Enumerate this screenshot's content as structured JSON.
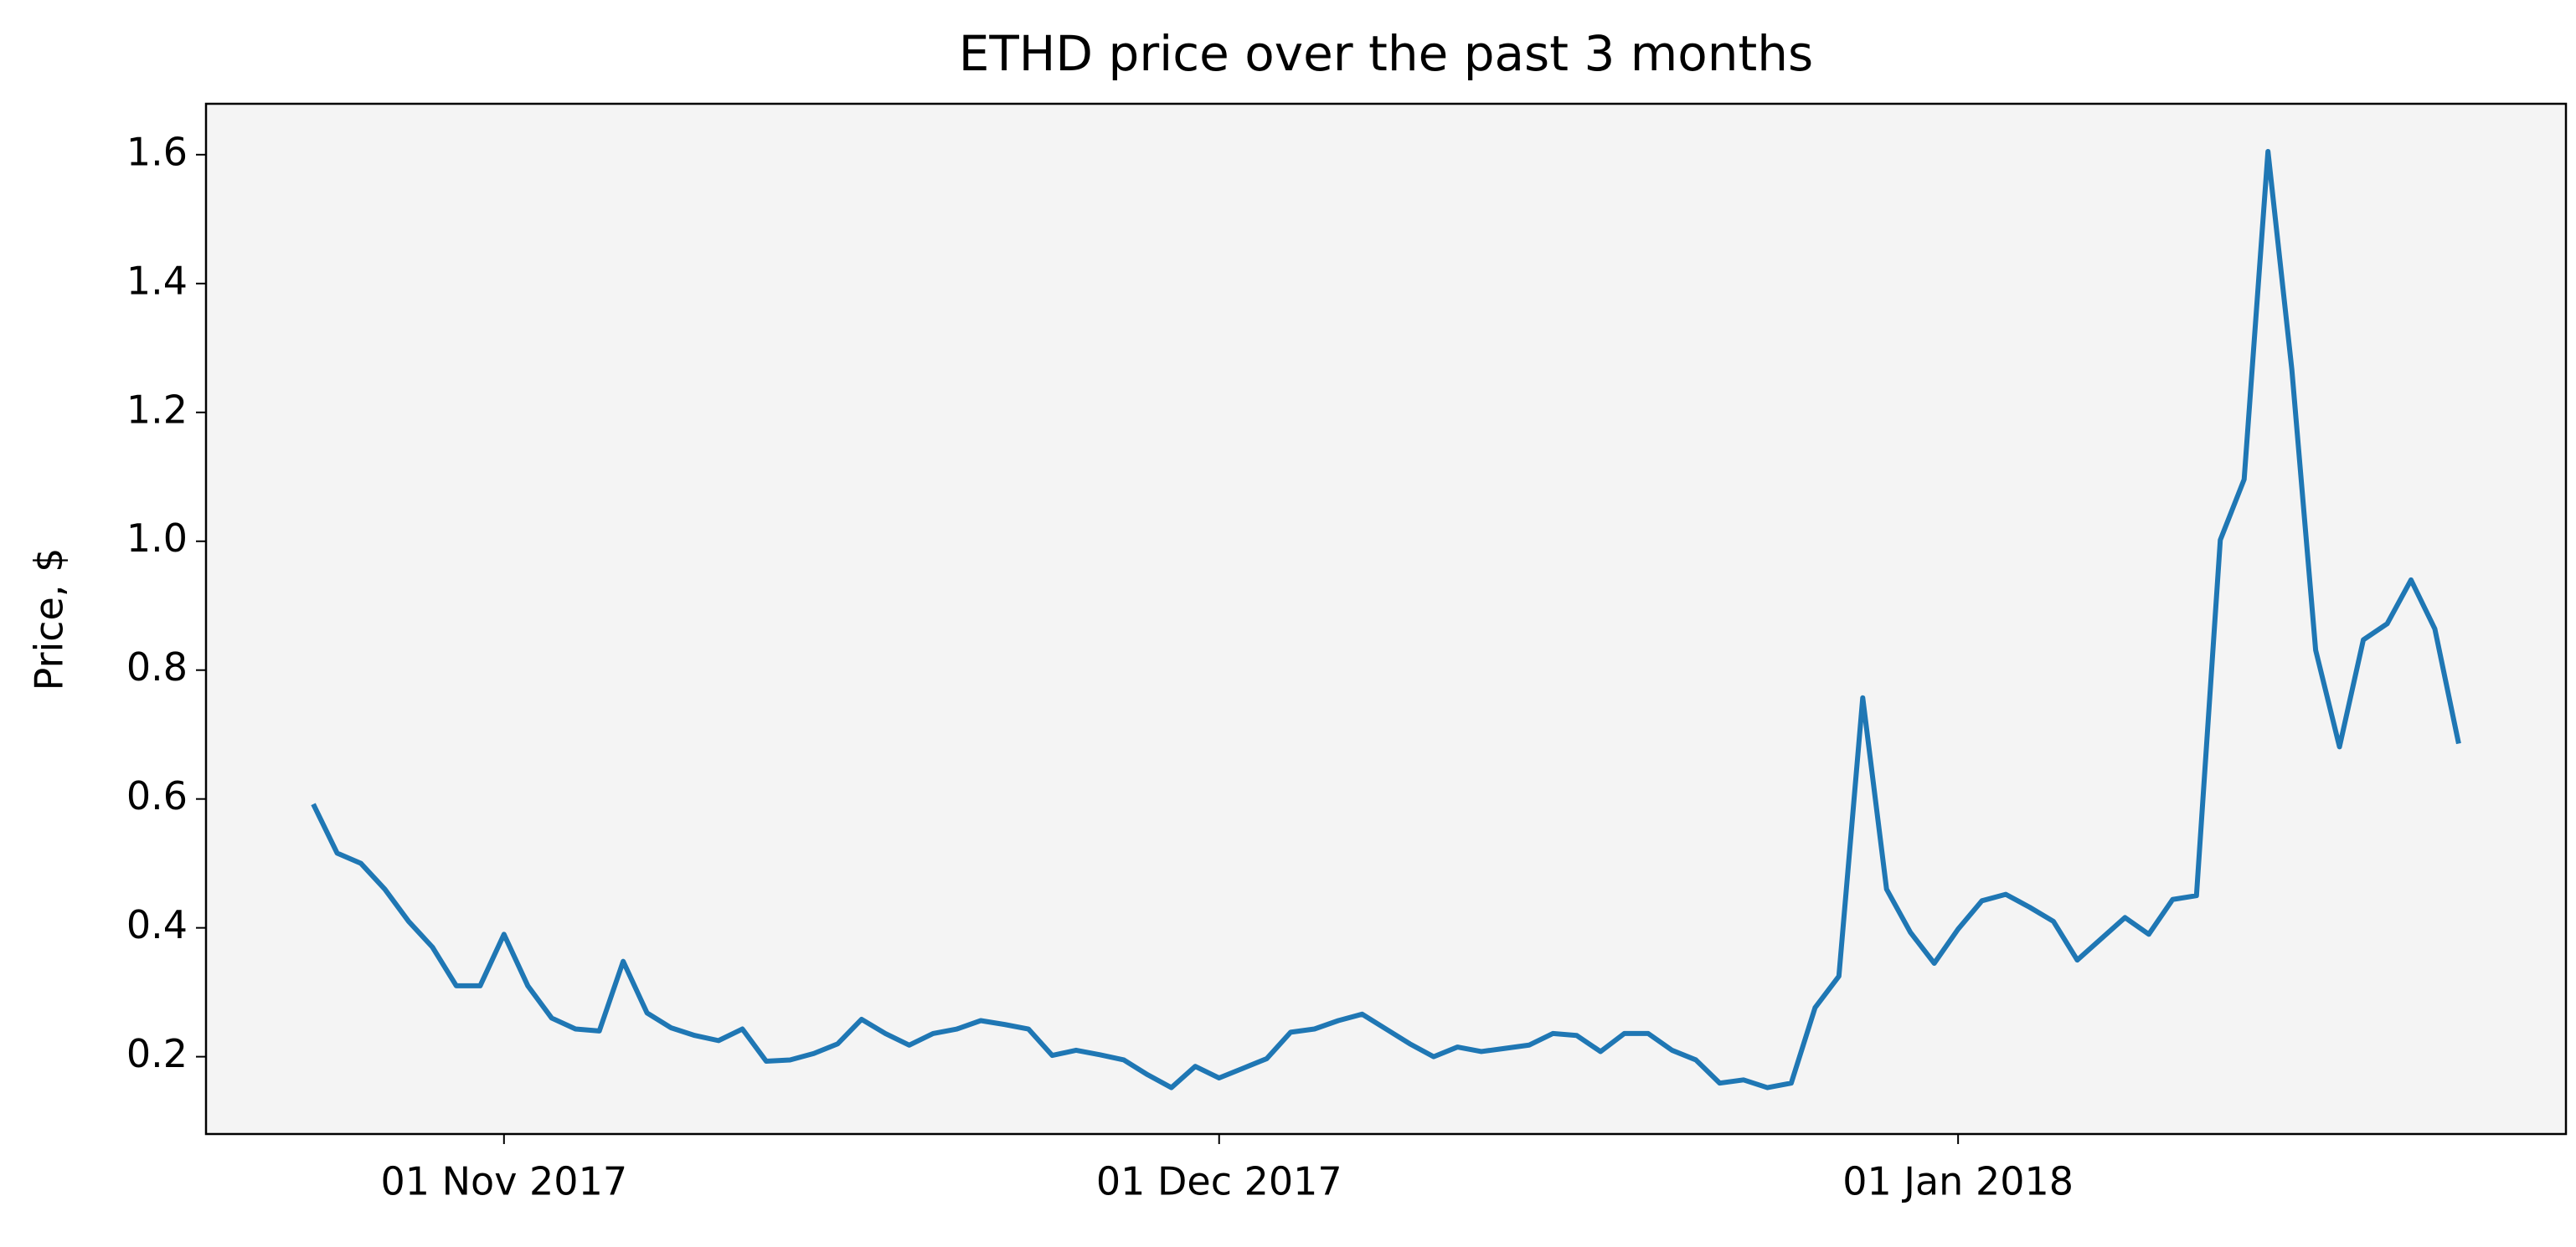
{
  "chart_data": {
    "type": "line",
    "title": "ETHD price over the past 3 months",
    "y_label": "Price, $",
    "x": [
      "2017-10-24",
      "2017-10-25",
      "2017-10-26",
      "2017-10-27",
      "2017-10-28",
      "2017-10-29",
      "2017-10-30",
      "2017-10-31",
      "2017-11-01",
      "2017-11-02",
      "2017-11-03",
      "2017-11-04",
      "2017-11-05",
      "2017-11-06",
      "2017-11-07",
      "2017-11-08",
      "2017-11-09",
      "2017-11-10",
      "2017-11-11",
      "2017-11-12",
      "2017-11-13",
      "2017-11-14",
      "2017-11-15",
      "2017-11-16",
      "2017-11-17",
      "2017-11-18",
      "2017-11-19",
      "2017-11-20",
      "2017-11-21",
      "2017-11-22",
      "2017-11-23",
      "2017-11-24",
      "2017-11-25",
      "2017-11-26",
      "2017-11-27",
      "2017-11-28",
      "2017-11-29",
      "2017-11-30",
      "2017-12-01",
      "2017-12-02",
      "2017-12-03",
      "2017-12-04",
      "2017-12-05",
      "2017-12-06",
      "2017-12-07",
      "2017-12-08",
      "2017-12-09",
      "2017-12-10",
      "2017-12-11",
      "2017-12-12",
      "2017-12-13",
      "2017-12-14",
      "2017-12-15",
      "2017-12-16",
      "2017-12-17",
      "2017-12-18",
      "2017-12-19",
      "2017-12-20",
      "2017-12-21",
      "2017-12-22",
      "2017-12-23",
      "2017-12-24",
      "2017-12-25",
      "2017-12-26",
      "2017-12-27",
      "2017-12-28",
      "2017-12-29",
      "2017-12-30",
      "2017-12-31",
      "2018-01-01",
      "2018-01-02",
      "2018-01-03",
      "2018-01-04",
      "2018-01-05",
      "2018-01-06",
      "2018-01-07",
      "2018-01-08",
      "2018-01-09",
      "2018-01-10",
      "2018-01-11",
      "2018-01-12",
      "2018-01-13",
      "2018-01-14",
      "2018-01-15",
      "2018-01-16",
      "2018-01-17",
      "2018-01-18",
      "2018-01-19",
      "2018-01-20",
      "2018-01-21",
      "2018-01-22"
    ],
    "series": [
      {
        "color": "#1f77b4",
        "values": [
          0.592,
          0.516,
          0.5,
          0.46,
          0.41,
          0.37,
          0.31,
          0.31,
          0.39,
          0.31,
          0.26,
          0.243,
          0.24,
          0.348,
          0.268,
          0.245,
          0.233,
          0.225,
          0.243,
          0.193,
          0.195,
          0.205,
          0.22,
          0.258,
          0.236,
          0.218,
          0.236,
          0.243,
          0.256,
          0.25,
          0.243,
          0.202,
          0.21,
          0.203,
          0.195,
          0.172,
          0.152,
          0.185,
          0.167,
          0.182,
          0.197,
          0.238,
          0.243,
          0.256,
          0.266,
          0.243,
          0.22,
          0.2,
          0.215,
          0.208,
          0.213,
          0.218,
          0.236,
          0.233,
          0.208,
          0.236,
          0.236,
          0.21,
          0.195,
          0.159,
          0.164,
          0.152,
          0.159,
          0.276,
          0.325,
          0.757,
          0.46,
          0.393,
          0.345,
          0.398,
          0.442,
          0.452,
          0.432,
          0.41,
          0.35,
          0.383,
          0.416,
          0.39,
          0.444,
          0.45,
          1.002,
          1.096,
          1.605,
          1.267,
          0.831,
          0.681,
          0.847,
          0.872,
          0.94,
          0.864,
          0.686
        ]
      }
    ],
    "xlim": [
      "2017-10-19T12:00:00Z",
      "2018-01-26T12:00:00Z"
    ],
    "xticks": [
      {
        "value": "2017-11-01",
        "label": "01 Nov 2017"
      },
      {
        "value": "2017-12-01",
        "label": "01 Dec 2017"
      },
      {
        "value": "2018-01-01",
        "label": "01 Jan 2018"
      }
    ],
    "ylim": [
      0.08,
      1.679
    ],
    "yticks": [
      0.2,
      0.4,
      0.6,
      0.8,
      {
        "value": 1,
        "label": "1.0"
      },
      1.2,
      1.4,
      1.6
    ],
    "plot_background": "#f4f4f4"
  }
}
